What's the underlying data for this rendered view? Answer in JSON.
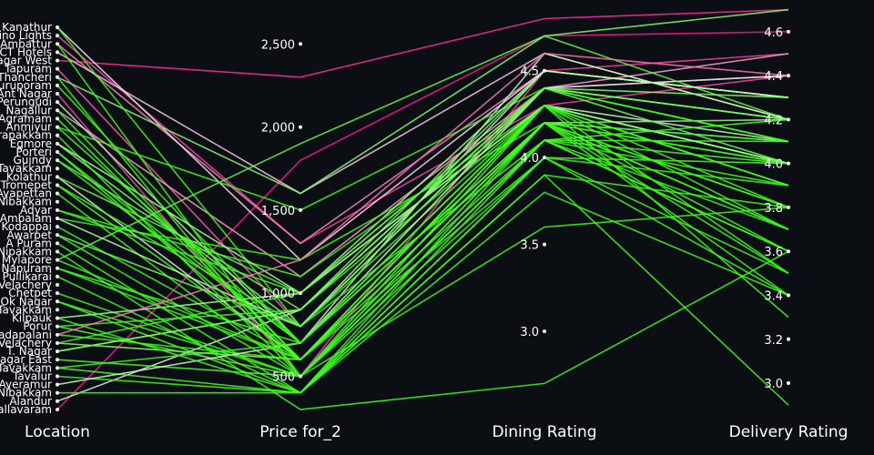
{
  "chart_data": {
    "type": "parallel_coordinates",
    "colors": {
      "background": "#0b0e12",
      "text": "#ffffff",
      "scale": [
        "#39ff14",
        "#f5f5f5",
        "#ff1493"
      ]
    },
    "axes": [
      {
        "key": "location",
        "label": "Location",
        "type": "categorical"
      },
      {
        "key": "price",
        "label": "Price for_2",
        "range": [
          300,
          2600
        ],
        "ticks": [
          500,
          1000,
          1500,
          2000,
          2500
        ],
        "tick_labels": [
          "500",
          "1,000",
          "1,500",
          "2,000",
          "2,500"
        ]
      },
      {
        "key": "dining",
        "label": "Dining Rating",
        "range": [
          2.55,
          4.75
        ],
        "ticks": [
          3.0,
          3.5,
          4.0,
          4.5
        ],
        "tick_labels": [
          "3.0",
          "3.5",
          "4.0",
          "4.5"
        ]
      },
      {
        "key": "delivery",
        "label": "Delivery Rating",
        "range": [
          2.88,
          4.62
        ],
        "ticks": [
          3.0,
          3.2,
          3.4,
          3.6,
          3.8,
          4.0,
          4.2,
          4.4,
          4.6
        ],
        "tick_labels": [
          "3.0",
          "3.2",
          "3.4",
          "3.6",
          "3.8",
          "4.0",
          "4.2",
          "4.4",
          "4.6"
        ]
      }
    ],
    "locations": [
      "Kanathur",
      "Tino Lights",
      "Ambattur",
      "ECT Hotels",
      "Nagar West",
      "Tapuram",
      "Thancheri",
      "Thuruporam",
      "Ant Nagar",
      "Perungudi",
      "Nagallur",
      "Agramam",
      "Anmiyur",
      "Trapakkam",
      "Egmore",
      "Porteri",
      "Guindy",
      "Tavakkam",
      "Kolathur",
      "Tromepet",
      "Ayapettan",
      "Nibakkam",
      "Adyar",
      "Ambalam",
      "Kodappai",
      "Awarpet",
      "A Puram",
      "Nipakkam",
      "Mylapore",
      "Napuram",
      "Pullikarai",
      "Velachery",
      "Chetpet",
      "Ok Nagar",
      "Tavakkam",
      "Kilpauk",
      "Porur",
      "Vadapalani",
      "Velachery",
      "T. Nagar",
      "Nagar East",
      "Tavakkam",
      "Tavalur",
      "Ayeramur",
      "Nibakkam",
      "Alandur",
      "Pallavaram"
    ],
    "records": [
      {
        "location": "Pallavaram",
        "price": 1800,
        "dining": 4.7,
        "delivery": 4.6,
        "value": 1.0
      },
      {
        "location": "Nagar West",
        "price": 2300,
        "dining": 4.8,
        "delivery": 4.7,
        "value": 0.95
      },
      {
        "location": "Tino Lights",
        "price": 1300,
        "dining": 4.3,
        "delivery": 4.4,
        "value": 0.9
      },
      {
        "location": "Ant Nagar",
        "price": 500,
        "dining": 4.5,
        "delivery": 4.5,
        "value": 0.9
      },
      {
        "location": "Tapuram",
        "price": 800,
        "dining": 4.4,
        "delivery": 4.4,
        "value": 0.85
      },
      {
        "location": "Ambattur",
        "price": 1300,
        "dining": 4.5,
        "delivery": 4.3,
        "value": 0.75
      },
      {
        "location": "Nagallur",
        "price": 1100,
        "dining": 4.4,
        "delivery": 4.5,
        "value": 0.7
      },
      {
        "location": "ECT Hotels",
        "price": 1600,
        "dining": 4.6,
        "delivery": 4.2,
        "value": 0.6
      },
      {
        "location": "Kanathur",
        "price": 1200,
        "dining": 4.5,
        "delivery": 4.3,
        "value": 0.55
      },
      {
        "location": "Alandur",
        "price": 900,
        "dining": 4.4,
        "delivery": 4.4,
        "value": 0.45
      },
      {
        "location": "Kolathur",
        "price": 600,
        "dining": 4.3,
        "delivery": 4.1,
        "value": 0.4
      },
      {
        "location": "Perungudi",
        "price": 700,
        "dining": 4.6,
        "delivery": 4.2,
        "value": 0.35
      },
      {
        "location": "Velachery",
        "price": 600,
        "dining": 4.2,
        "delivery": 4.2,
        "value": 0.25
      },
      {
        "location": "Egmore",
        "price": 800,
        "dining": 4.4,
        "delivery": 4.2,
        "value": 0.2
      },
      {
        "location": "Guindy",
        "price": 900,
        "dining": 4.5,
        "delivery": 4.3,
        "value": 0.15
      },
      {
        "location": "Adyar",
        "price": 1000,
        "dining": 4.4,
        "delivery": 4.1,
        "value": 0.05
      },
      {
        "location": "Mylapore",
        "price": 1900,
        "dining": 4.7,
        "delivery": 4.2,
        "value": 0.1
      },
      {
        "location": "Thancheri",
        "price": 1600,
        "dining": 4.7,
        "delivery": 4.7,
        "value": 0.2
      },
      {
        "location": "Thuruporam",
        "price": 700,
        "dining": 4.3,
        "delivery": 4.0,
        "value": 0.0
      },
      {
        "location": "Agramam",
        "price": 600,
        "dining": 4.2,
        "delivery": 4.0,
        "value": 0.05
      },
      {
        "location": "Anmiyur",
        "price": 1500,
        "dining": 4.4,
        "delivery": 4.1,
        "value": 0.0
      },
      {
        "location": "Trapakkam",
        "price": 500,
        "dining": 4.1,
        "delivery": 3.9,
        "value": 0.0
      },
      {
        "location": "Porteri",
        "price": 700,
        "dining": 4.2,
        "delivery": 3.8,
        "value": 0.0
      },
      {
        "location": "Tavakkam",
        "price": 400,
        "dining": 4.0,
        "delivery": 4.0,
        "value": 0.05
      },
      {
        "location": "Tromepet",
        "price": 800,
        "dining": 4.3,
        "delivery": 3.7,
        "value": 0.0
      },
      {
        "location": "Ayapettan",
        "price": 500,
        "dining": 4.1,
        "delivery": 3.6,
        "value": 0.0
      },
      {
        "location": "Nibakkam",
        "price": 400,
        "dining": 4.0,
        "delivery": 3.5,
        "value": 0.0
      },
      {
        "location": "Ambalam",
        "price": 1200,
        "dining": 4.2,
        "delivery": 3.4,
        "value": 0.0
      },
      {
        "location": "Kodappai",
        "price": 600,
        "dining": 4.3,
        "delivery": 3.3,
        "value": 0.0
      },
      {
        "location": "Awarpet",
        "price": 500,
        "dining": 3.6,
        "delivery": 3.8,
        "value": 0.0
      },
      {
        "location": "A Puram",
        "price": 400,
        "dining": 3.8,
        "delivery": 3.4,
        "value": 0.0
      },
      {
        "location": "Nipakkam",
        "price": 300,
        "dining": 2.7,
        "delivery": 3.6,
        "value": 0.0
      },
      {
        "location": "Napuram",
        "price": 700,
        "dining": 4.2,
        "delivery": 4.1,
        "value": 0.05
      },
      {
        "location": "Pullikarai",
        "price": 400,
        "dining": 3.9,
        "delivery": 2.9,
        "value": 0.0
      },
      {
        "location": "Chetpet",
        "price": 500,
        "dining": 4.0,
        "delivery": 3.9,
        "value": 0.0
      },
      {
        "location": "Ok Nagar",
        "price": 400,
        "dining": 4.1,
        "delivery": 4.2,
        "value": 0.05
      },
      {
        "location": "Kilpauk",
        "price": 1000,
        "dining": 4.5,
        "delivery": 4.3,
        "value": 0.3
      },
      {
        "location": "Porur",
        "price": 500,
        "dining": 4.3,
        "delivery": 4.0,
        "value": 0.05
      },
      {
        "location": "Vadapalani",
        "price": 600,
        "dining": 4.2,
        "delivery": 3.8,
        "value": 0.0
      },
      {
        "location": "T. Nagar",
        "price": 900,
        "dining": 4.3,
        "delivery": 4.0,
        "value": 0.0
      },
      {
        "location": "Nagar East",
        "price": 500,
        "dining": 4.1,
        "delivery": 4.1,
        "value": 0.05
      },
      {
        "location": "Tavalur",
        "price": 400,
        "dining": 4.2,
        "delivery": 3.7,
        "value": 0.0
      },
      {
        "location": "Ayeramur",
        "price": 700,
        "dining": 4.4,
        "delivery": 4.2,
        "value": 0.4
      },
      {
        "location": "Velachery",
        "price": 1000,
        "dining": 4.3,
        "delivery": 3.9,
        "value": 0.0
      },
      {
        "location": "Kanathur",
        "price": 800,
        "dining": 4.1,
        "delivery": 3.6,
        "value": 0.0
      },
      {
        "location": "Ambattur",
        "price": 500,
        "dining": 4.2,
        "delivery": 3.5,
        "value": 0.0
      },
      {
        "location": "Adyar",
        "price": 1100,
        "dining": 4.3,
        "delivery": 3.8,
        "value": 0.0
      },
      {
        "location": "Egmore",
        "price": 1000,
        "dining": 4.3,
        "delivery": 4.0,
        "value": 0.3
      },
      {
        "location": "Guindy",
        "price": 700,
        "dining": 4.2,
        "delivery": 4.0,
        "value": 0.0
      },
      {
        "location": "Mylapore",
        "price": 600,
        "dining": 4.0,
        "delivery": 3.4,
        "value": 0.0
      },
      {
        "location": "Porur",
        "price": 900,
        "dining": 4.4,
        "delivery": 4.1,
        "value": 0.0
      },
      {
        "location": "Anmiyur",
        "price": 700,
        "dining": 4.3,
        "delivery": 3.9,
        "value": 0.0
      },
      {
        "location": "Tromepet",
        "price": 600,
        "dining": 4.1,
        "delivery": 4.0,
        "value": 0.05
      },
      {
        "location": "Kilpauk",
        "price": 400,
        "dining": 3.9,
        "delivery": 3.8,
        "value": 0.0
      },
      {
        "location": "Ambalam",
        "price": 800,
        "dining": 4.5,
        "delivery": 4.3,
        "value": 0.35
      },
      {
        "location": "Thancheri",
        "price": 500,
        "dining": 4.1,
        "delivery": 3.7,
        "value": 0.0
      },
      {
        "location": "Nagallur",
        "price": 600,
        "dining": 4.2,
        "delivery": 3.6,
        "value": 0.0
      },
      {
        "location": "Kolathur",
        "price": 1000,
        "dining": 4.4,
        "delivery": 4.2,
        "value": 0.1
      },
      {
        "location": "Tavakkam",
        "price": 700,
        "dining": 4.3,
        "delivery": 3.9,
        "value": 0.0
      },
      {
        "location": "Vadapalani",
        "price": 1200,
        "dining": 4.6,
        "delivery": 4.4,
        "value": 0.8
      },
      {
        "location": "T. Nagar",
        "price": 900,
        "dining": 4.4,
        "delivery": 4.3,
        "value": 0.2
      },
      {
        "location": "Napuram",
        "price": 600,
        "dining": 4.3,
        "delivery": 3.5,
        "value": 0.0
      },
      {
        "location": "Ok Nagar",
        "price": 500,
        "dining": 4.2,
        "delivery": 3.7,
        "value": 0.0
      },
      {
        "location": "Awarpet",
        "price": 800,
        "dining": 4.4,
        "delivery": 4.0,
        "value": 0.15
      },
      {
        "location": "Porteri",
        "price": 600,
        "dining": 4.2,
        "delivery": 4.1,
        "value": 0.05
      }
    ]
  }
}
